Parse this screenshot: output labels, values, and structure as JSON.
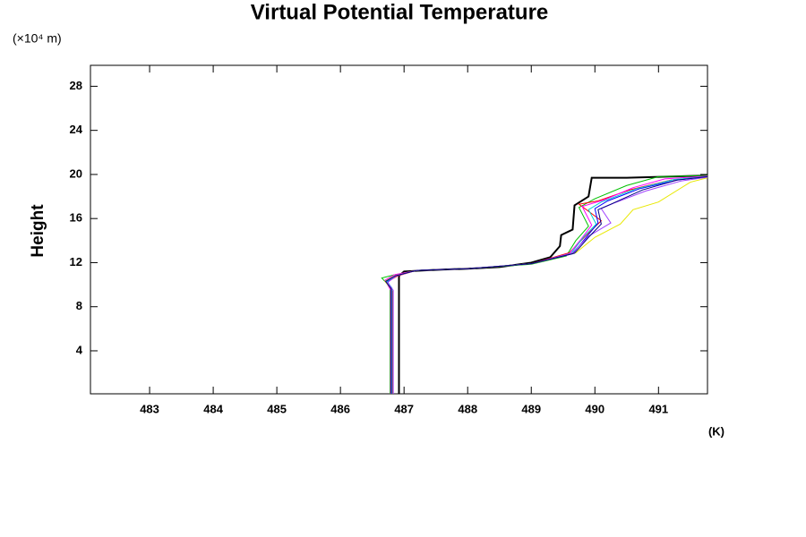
{
  "chart_data": {
    "type": "line",
    "title": "Virtual Potential Temperature",
    "y_label": "Height",
    "y_unit": "(×10⁴ m)",
    "x_unit": "(K)",
    "xlim": [
      482.07,
      491.77
    ],
    "ylim": [
      0.1,
      29.9
    ],
    "xticks": [
      483,
      484,
      485,
      486,
      487,
      488,
      489,
      490,
      491
    ],
    "yticks": [
      4,
      8,
      12,
      16,
      20,
      24,
      28
    ],
    "series": [
      {
        "color": "#000000",
        "width": 2,
        "x": [
          486.92,
          486.92,
          487.0,
          487.5,
          488.0,
          488.5,
          489.0,
          489.3,
          489.45,
          489.47,
          489.65,
          489.68,
          489.9,
          489.95,
          490.5,
          491.77
        ],
        "values": [
          0.1,
          10.8,
          11.2,
          11.35,
          11.45,
          11.6,
          12.0,
          12.5,
          13.5,
          14.5,
          15.0,
          17.2,
          18.0,
          19.7,
          19.7,
          19.9
        ]
      },
      {
        "color": "#00c000",
        "width": 1,
        "x": [
          486.78,
          486.78,
          486.65,
          486.85,
          487.2,
          488.0,
          489.0,
          489.55,
          489.7,
          489.9,
          489.75,
          490.0,
          490.5,
          491.0,
          491.77
        ],
        "values": [
          0.1,
          9.8,
          10.6,
          10.9,
          11.3,
          11.45,
          11.85,
          12.6,
          14.0,
          15.3,
          17.0,
          17.8,
          19.0,
          19.8,
          19.9
        ]
      },
      {
        "color": "#ff0000",
        "width": 1,
        "x": [
          486.82,
          486.82,
          486.72,
          486.9,
          487.2,
          488.0,
          489.0,
          489.6,
          489.85,
          490.1,
          489.75,
          490.05,
          490.55,
          491.2,
          491.77
        ],
        "values": [
          0.1,
          9.4,
          10.2,
          10.8,
          11.3,
          11.45,
          11.9,
          12.9,
          14.4,
          15.8,
          17.3,
          17.6,
          18.6,
          19.5,
          19.8
        ]
      },
      {
        "color": "#0000ff",
        "width": 1,
        "x": [
          486.8,
          486.8,
          486.74,
          486.86,
          487.2,
          488.0,
          489.0,
          489.65,
          489.85,
          490.05,
          490.0,
          490.2,
          490.7,
          491.3,
          491.77
        ],
        "values": [
          0.1,
          9.6,
          10.3,
          10.8,
          11.3,
          11.45,
          11.9,
          12.8,
          14.2,
          15.6,
          16.9,
          17.6,
          18.7,
          19.5,
          19.8
        ]
      },
      {
        "color": "#ff00ff",
        "width": 1,
        "x": [
          486.79,
          486.79,
          486.7,
          486.85,
          487.2,
          488.0,
          489.0,
          489.58,
          489.78,
          489.95,
          489.8,
          490.15,
          490.6,
          491.1,
          491.77
        ],
        "values": [
          0.1,
          9.5,
          10.4,
          10.9,
          11.3,
          11.45,
          11.9,
          12.7,
          14.1,
          15.4,
          17.1,
          17.7,
          18.8,
          19.6,
          19.85
        ]
      },
      {
        "color": "#00d0d0",
        "width": 1,
        "x": [
          486.81,
          486.81,
          486.73,
          486.87,
          487.2,
          488.0,
          489.0,
          489.62,
          489.82,
          490.02,
          489.9,
          490.1,
          490.65,
          491.25,
          491.77
        ],
        "values": [
          0.1,
          9.7,
          10.3,
          10.8,
          11.3,
          11.45,
          11.9,
          12.8,
          14.3,
          15.5,
          16.8,
          17.5,
          18.7,
          19.55,
          19.8
        ]
      },
      {
        "color": "#e8e800",
        "width": 1,
        "x": [
          486.8,
          486.8,
          486.7,
          486.85,
          487.2,
          488.0,
          489.0,
          489.7,
          490.0,
          490.4,
          490.6,
          491.0,
          491.5,
          491.77
        ],
        "values": [
          0.1,
          9.6,
          10.3,
          10.8,
          11.3,
          11.45,
          11.9,
          12.9,
          14.3,
          15.5,
          16.8,
          17.5,
          19.3,
          19.7
        ]
      },
      {
        "color": "#a040ff",
        "width": 1,
        "x": [
          486.83,
          486.83,
          486.74,
          486.88,
          487.2,
          488.0,
          489.0,
          489.65,
          489.9,
          490.25,
          490.1,
          490.3,
          490.8,
          491.35,
          491.77
        ],
        "values": [
          0.1,
          9.5,
          10.2,
          10.8,
          11.3,
          11.45,
          11.9,
          12.9,
          14.4,
          15.6,
          16.9,
          17.4,
          18.5,
          19.4,
          19.75
        ]
      },
      {
        "color": "#000080",
        "width": 1,
        "x": [
          486.8,
          486.8,
          486.71,
          486.86,
          487.2,
          488.0,
          489.0,
          489.68,
          489.9,
          490.1,
          490.05,
          490.25,
          490.75,
          491.3,
          491.77
        ],
        "values": [
          0.1,
          9.6,
          10.3,
          10.8,
          11.3,
          11.45,
          11.9,
          12.85,
          14.3,
          15.5,
          16.8,
          17.3,
          18.6,
          19.5,
          19.8
        ]
      }
    ]
  }
}
